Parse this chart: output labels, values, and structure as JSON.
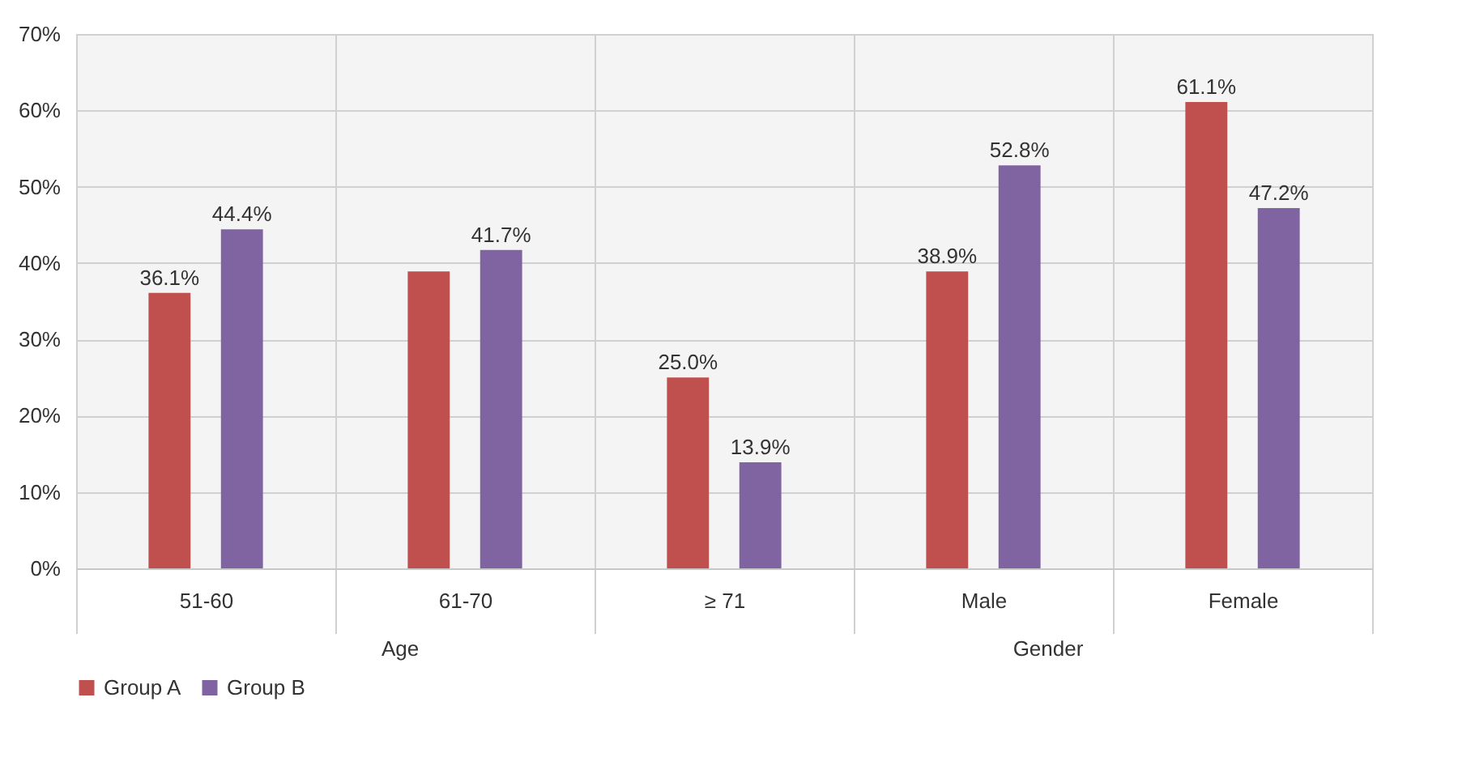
{
  "chart_data": {
    "type": "bar",
    "categories": [
      "51-60",
      "61-70",
      "≥ 71",
      "Male",
      "Female"
    ],
    "series": [
      {
        "name": "Group A",
        "color": "#c0504d",
        "values": [
          36.1,
          38.9,
          25.0,
          38.9,
          61.1
        ],
        "value_labels": [
          "36.1%",
          null,
          "25.0%",
          "38.9%",
          "61.1%"
        ]
      },
      {
        "name": "Group B",
        "color": "#8064a2",
        "values": [
          44.4,
          41.7,
          13.9,
          52.8,
          47.2
        ],
        "value_labels": [
          "44.4%",
          "41.7%",
          "13.9%",
          "52.8%",
          "47.2%"
        ]
      }
    ],
    "ylim": [
      0,
      70
    ],
    "yticks": [
      {
        "value": 0,
        "label": "0%"
      },
      {
        "value": 10,
        "label": "10%"
      },
      {
        "value": 20,
        "label": "20%"
      },
      {
        "value": 30,
        "label": "30%"
      },
      {
        "value": 40,
        "label": "40%"
      },
      {
        "value": 50,
        "label": "50%"
      },
      {
        "value": 60,
        "label": "60%"
      },
      {
        "value": 70,
        "label": "70%"
      }
    ],
    "annotations": [
      "Age",
      "Gender"
    ],
    "grid": true,
    "legend": "bottom"
  }
}
